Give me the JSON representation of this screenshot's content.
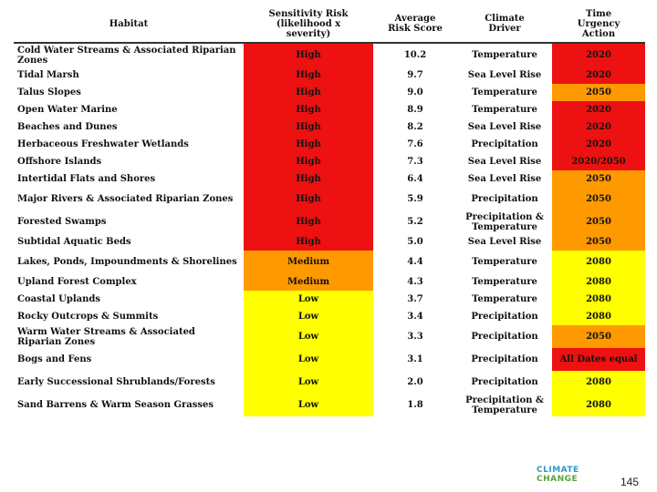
{
  "header": {
    "habitat": "Habitat",
    "sensitivity": [
      "Sensitivity Risk",
      "(likelihood x",
      "severity)"
    ],
    "score": [
      "Average",
      "Risk Score"
    ],
    "driver": [
      "Climate",
      "Driver"
    ],
    "urgency": [
      "Time",
      "Urgency",
      "Action"
    ]
  },
  "colors": {
    "red": "#ee1111",
    "orange": "#ff9900",
    "yellow": "#ffff00"
  },
  "rows": [
    {
      "habitat": "Cold Water Streams & Associated Riparian Zones",
      "sens": "High",
      "sens_color": "red",
      "score": "10.2",
      "driver": "Temperature",
      "urg": "2020",
      "urg_color": "red"
    },
    {
      "habitat": "Tidal Marsh",
      "sens": "High",
      "sens_color": "red",
      "score": "9.7",
      "driver": "Sea Level Rise",
      "urg": "2020",
      "urg_color": "red"
    },
    {
      "habitat": "Talus Slopes",
      "sens": "High",
      "sens_color": "red",
      "score": "9.0",
      "driver": "Temperature",
      "urg": "2050",
      "urg_color": "orange"
    },
    {
      "habitat": "Open Water Marine",
      "sens": "High",
      "sens_color": "red",
      "score": "8.9",
      "driver": "Temperature",
      "urg": "2020",
      "urg_color": "red"
    },
    {
      "habitat": "Beaches and Dunes",
      "sens": "High",
      "sens_color": "red",
      "score": "8.2",
      "driver": "Sea Level Rise",
      "urg": "2020",
      "urg_color": "red"
    },
    {
      "habitat": "Herbaceous Freshwater Wetlands",
      "sens": "High",
      "sens_color": "red",
      "score": "7.6",
      "driver": "Precipitation",
      "urg": "2020",
      "urg_color": "red"
    },
    {
      "habitat": "Offshore Islands",
      "sens": "High",
      "sens_color": "red",
      "score": "7.3",
      "driver": "Sea Level Rise",
      "urg": "2020/2050",
      "urg_color": "red"
    },
    {
      "habitat": "Intertidal Flats and Shores",
      "sens": "High",
      "sens_color": "red",
      "score": "6.4",
      "driver": "Sea Level Rise",
      "urg": "2050",
      "urg_color": "orange"
    },
    {
      "habitat": "Major Rivers & Associated Riparian Zones",
      "sens": "High",
      "sens_color": "red",
      "score": "5.9",
      "driver": "Precipitation",
      "urg": "2050",
      "urg_color": "orange"
    },
    {
      "habitat": "Forested Swamps",
      "sens": "High",
      "sens_color": "red",
      "score": "5.2",
      "driver": "Precipitation & Temperature",
      "urg": "2050",
      "urg_color": "orange"
    },
    {
      "habitat": "Subtidal Aquatic Beds",
      "sens": "High",
      "sens_color": "red",
      "score": "5.0",
      "driver": "Sea Level Rise",
      "urg": "2050",
      "urg_color": "orange"
    },
    {
      "habitat": "Lakes, Ponds, Impoundments & Shorelines",
      "sens": "Medium",
      "sens_color": "orange",
      "score": "4.4",
      "driver": "Temperature",
      "urg": "2080",
      "urg_color": "yellow"
    },
    {
      "habitat": "Upland Forest Complex",
      "sens": "Medium",
      "sens_color": "orange",
      "score": "4.3",
      "driver": "Temperature",
      "urg": "2080",
      "urg_color": "yellow"
    },
    {
      "habitat": "Coastal Uplands",
      "sens": "Low",
      "sens_color": "yellow",
      "score": "3.7",
      "driver": "Temperature",
      "urg": "2080",
      "urg_color": "yellow"
    },
    {
      "habitat": "Rocky Outcrops & Summits",
      "sens": "Low",
      "sens_color": "yellow",
      "score": "3.4",
      "driver": "Precipitation",
      "urg": "2080",
      "urg_color": "yellow"
    },
    {
      "habitat": "Warm Water Streams & Associated Riparian Zones",
      "sens": "Low",
      "sens_color": "yellow",
      "score": "3.3",
      "driver": "Precipitation",
      "urg": "2050",
      "urg_color": "orange"
    },
    {
      "habitat": "Bogs and Fens",
      "sens": "Low",
      "sens_color": "yellow",
      "score": "3.1",
      "driver": "Precipitation",
      "urg": "All Dates equal",
      "urg_color": "red"
    },
    {
      "habitat": "Early Successional Shrublands/Forests",
      "sens": "Low",
      "sens_color": "yellow",
      "score": "2.0",
      "driver": "Precipitation",
      "urg": "2080",
      "urg_color": "yellow"
    },
    {
      "habitat": "Sand Barrens & Warm Season Grasses",
      "sens": "Low",
      "sens_color": "yellow",
      "score": "1.8",
      "driver": "Precipitation & Temperature",
      "urg": "2080",
      "urg_color": "yellow"
    }
  ],
  "logo": {
    "line1": "CLIMATE",
    "line2": "CHANGE"
  },
  "page_number": "145"
}
